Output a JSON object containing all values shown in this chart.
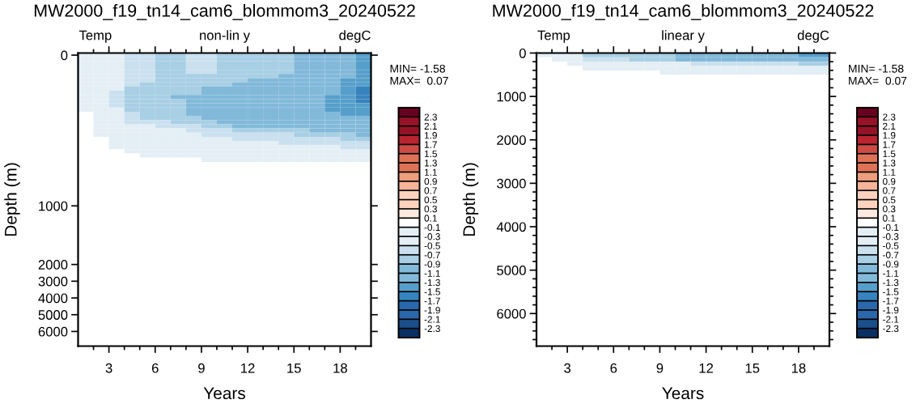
{
  "chart_data": [
    {
      "type": "heatmap",
      "title": "MW2000_f19_tn14_cam6_blommom3_20240522",
      "subtitle": "non-lin y",
      "xlabel": "Years",
      "ylabel": "Depth (m)",
      "annotations": [
        "Temp",
        "degC",
        "MIN= -1.58",
        "MAX=  0.07"
      ],
      "x": [
        1.5,
        2.5,
        3.5,
        4.5,
        5.5,
        6.5,
        7.5,
        8.5,
        9.5,
        10.5,
        11.5,
        12.5,
        13.5,
        14.5,
        15.5,
        16.5,
        17.5,
        18.5,
        19.5
      ],
      "y_categories": [
        "0",
        null,
        null,
        null,
        null,
        null,
        null,
        null,
        null,
        null,
        null,
        null,
        null,
        null,
        null,
        null,
        null,
        null,
        null,
        null,
        null,
        null,
        null,
        null,
        null,
        null,
        null,
        null,
        null,
        null,
        null,
        null,
        null,
        null,
        null,
        null,
        "1000",
        null,
        null,
        null,
        null,
        null,
        null,
        null,
        null,
        null,
        null,
        null,
        null,
        null,
        "2000",
        null,
        null,
        null,
        "3000",
        null,
        null,
        null,
        "4000",
        null,
        null,
        null,
        "5000",
        null,
        null,
        null,
        "6000",
        null,
        null,
        null
      ],
      "xlim": [
        1,
        20
      ],
      "xticks": [
        {
          "value": 2,
          "label": null
        },
        3,
        {
          "value": 4,
          "label": null
        },
        {
          "value": 5,
          "label": null
        },
        6,
        {
          "value": 7,
          "label": null
        },
        {
          "value": 8,
          "label": null
        },
        9,
        {
          "value": 10,
          "label": null
        },
        {
          "value": 11,
          "label": null
        },
        12,
        {
          "value": 13,
          "label": null
        },
        {
          "value": 14,
          "label": null
        },
        15,
        {
          "value": 16,
          "label": null
        },
        {
          "value": 17,
          "label": null
        },
        18,
        {
          "value": 19,
          "label": null
        }
      ],
      "clim": [
        -2.5,
        2.5
      ],
      "cticks": [
        -2.3,
        -2.1,
        -1.9,
        -1.7,
        -1.5,
        -1.3,
        -1.1,
        -0.9,
        -0.7,
        -0.5,
        -0.3,
        -0.1,
        0.1,
        0.3,
        0.5,
        0.7,
        0.9,
        1.1,
        1.3,
        1.5,
        1.7,
        1.9,
        2.1,
        2.3
      ],
      "colors": [
        "#0a3064",
        "#1b4f8a",
        "#2a68ab",
        "#2a68ab",
        "#3783bd",
        "#569fcb",
        "#82b9d9",
        "#82b9d9",
        "#a8cfe4",
        "#cae0ee",
        "#e4eef5",
        "#e4eef5",
        "#ffffff",
        "#fde9df",
        "#fbd2bd",
        "#fbd2bd",
        "#f6b498",
        "#ee9e7c",
        "#de7257",
        "#de7257",
        "#cd4b43",
        "#b92430",
        "#961227",
        "#961227",
        "#67001f"
      ],
      "cells": [
        [
          -0.2,
          -0.4,
          -0.4,
          -0.6,
          -0.6,
          -0.8,
          -0.8,
          -0.6,
          -0.6,
          -0.8,
          -0.8,
          -0.8,
          -0.8,
          -0.8,
          -1.0,
          -1.0,
          -1.0,
          -1.0,
          -1.4
        ],
        [
          -0.2,
          -0.4,
          -0.4,
          -0.6,
          -0.6,
          -0.8,
          -0.8,
          -0.6,
          -0.6,
          -0.8,
          -0.8,
          -0.8,
          -0.8,
          -0.8,
          -1.0,
          -1.0,
          -1.0,
          -1.0,
          -1.4
        ],
        [
          -0.2,
          -0.4,
          -0.4,
          -0.6,
          -0.6,
          -0.8,
          -0.8,
          -0.6,
          -0.6,
          -0.8,
          -0.8,
          -0.8,
          -0.8,
          -0.8,
          -1.0,
          -1.0,
          -1.0,
          -1.0,
          -1.4
        ],
        [
          -0.2,
          -0.4,
          -0.4,
          -0.6,
          -0.6,
          -0.8,
          -0.8,
          -0.6,
          -0.6,
          -0.8,
          -0.8,
          -0.8,
          -0.8,
          -0.8,
          -1.0,
          -1.0,
          -1.0,
          -1.0,
          -1.4
        ],
        [
          -0.2,
          -0.4,
          -0.4,
          -0.6,
          -0.6,
          -0.8,
          -0.8,
          -0.6,
          -0.6,
          -0.8,
          -0.8,
          -0.8,
          -0.8,
          -0.8,
          -1.0,
          -1.0,
          -1.0,
          -1.0,
          -1.4
        ],
        [
          -0.2,
          -0.4,
          -0.4,
          -0.6,
          -0.6,
          -0.8,
          -0.8,
          -0.8,
          -0.8,
          -0.8,
          -0.8,
          -0.8,
          -0.8,
          -1.0,
          -1.0,
          -1.0,
          -1.0,
          -1.0,
          -1.4
        ],
        [
          -0.2,
          -0.4,
          -0.4,
          -0.6,
          -0.6,
          -0.8,
          -0.8,
          -0.8,
          -0.8,
          -0.8,
          -0.8,
          -1.0,
          -1.0,
          -1.0,
          -1.0,
          -1.0,
          -1.0,
          -1.4,
          -1.4
        ],
        [
          -0.2,
          -0.4,
          -0.4,
          -0.6,
          -0.8,
          -0.8,
          -0.8,
          -0.8,
          -0.8,
          -0.8,
          -1.0,
          -1.0,
          -1.0,
          -1.0,
          -1.2,
          -1.2,
          -1.0,
          -1.4,
          -1.4
        ],
        [
          -0.2,
          -0.4,
          -0.4,
          -0.8,
          -0.8,
          -0.8,
          -0.8,
          -0.8,
          -1.0,
          -1.0,
          -1.0,
          -1.0,
          -1.2,
          -1.2,
          -1.2,
          -1.2,
          -1.2,
          -1.4,
          -1.55
        ],
        [
          -0.2,
          -0.4,
          -0.6,
          -0.8,
          -0.8,
          -0.8,
          -0.8,
          -0.8,
          -1.0,
          -1.0,
          -1.0,
          -1.2,
          -1.2,
          -1.2,
          -1.2,
          -1.2,
          -1.2,
          -1.4,
          -1.58
        ],
        [
          -0.2,
          -0.4,
          -0.6,
          -0.8,
          -0.8,
          -0.8,
          -1.0,
          -1.0,
          -1.0,
          -1.0,
          -1.2,
          -1.2,
          -1.2,
          -1.2,
          -1.2,
          -1.2,
          -1.4,
          -1.4,
          -1.55
        ],
        [
          -0.2,
          -0.4,
          -0.6,
          -0.8,
          -0.8,
          -0.8,
          -0.8,
          -1.0,
          -1.0,
          -1.0,
          -1.2,
          -1.2,
          -1.2,
          -1.2,
          -1.2,
          -1.2,
          -1.4,
          -1.4,
          -1.55
        ],
        [
          -0.2,
          -0.4,
          -0.6,
          -0.8,
          -0.8,
          -0.8,
          -0.8,
          -1.0,
          -1.0,
          -1.0,
          -1.2,
          -1.2,
          -1.2,
          -1.2,
          -1.2,
          -1.2,
          -1.4,
          -1.4,
          -1.4
        ],
        [
          -0.2,
          -0.4,
          -0.4,
          -0.8,
          -0.8,
          -0.8,
          -0.8,
          -1.0,
          -1.0,
          -1.0,
          -1.2,
          -1.2,
          -1.2,
          -1.2,
          -1.2,
          -1.2,
          -1.4,
          -1.4,
          -1.4
        ],
        [
          0,
          -0.4,
          -0.4,
          -0.6,
          -0.8,
          -0.8,
          -0.8,
          -1.0,
          -1.0,
          -1.0,
          -1.2,
          -1.2,
          -1.2,
          -1.2,
          -1.2,
          -1.2,
          -1.0,
          -1.4,
          -1.4
        ],
        [
          0,
          -0.4,
          -0.4,
          -0.6,
          -0.8,
          -0.8,
          -0.8,
          -0.8,
          -1.0,
          -1.0,
          -1.0,
          -1.2,
          -1.2,
          -1.2,
          -1.2,
          -1.2,
          -1.0,
          -1.0,
          -1.0
        ],
        [
          0,
          -0.4,
          -0.4,
          -0.6,
          -0.6,
          -0.6,
          -0.8,
          -0.8,
          -0.8,
          -1.0,
          -1.0,
          -1.0,
          -1.0,
          -1.2,
          -1.2,
          -1.2,
          -1.0,
          -1.0,
          -1.0
        ],
        [
          0,
          -0.2,
          -0.4,
          -0.4,
          -0.4,
          -0.6,
          -0.6,
          -0.6,
          -0.8,
          -0.8,
          -1.0,
          -1.0,
          -1.0,
          -1.0,
          -1.0,
          -1.2,
          -1.0,
          -1.0,
          -1.0
        ],
        [
          0,
          -0.2,
          -0.4,
          -0.4,
          -0.4,
          -0.4,
          -0.4,
          -0.6,
          -0.6,
          -0.6,
          -0.8,
          -0.8,
          -0.8,
          -0.8,
          -0.8,
          -1.0,
          -1.0,
          -1.0,
          -1.0
        ],
        [
          0,
          -0.2,
          -0.4,
          -0.4,
          -0.4,
          -0.4,
          -0.4,
          -0.4,
          -0.6,
          -0.6,
          -0.6,
          -0.6,
          -0.6,
          -0.6,
          -0.8,
          -0.8,
          -0.8,
          -0.8,
          -1.0
        ],
        [
          0,
          0,
          -0.2,
          -0.4,
          -0.4,
          -0.4,
          -0.4,
          -0.4,
          -0.4,
          -0.4,
          -0.6,
          -0.6,
          -0.6,
          -0.6,
          -0.6,
          -0.6,
          -0.6,
          -0.8,
          -0.8
        ],
        [
          0,
          0,
          -0.2,
          -0.2,
          -0.2,
          -0.4,
          -0.4,
          -0.4,
          -0.4,
          -0.4,
          -0.4,
          -0.4,
          -0.4,
          -0.6,
          -0.6,
          -0.6,
          -0.6,
          -0.6,
          -0.6
        ],
        [
          0,
          0,
          -0.2,
          -0.2,
          -0.2,
          -0.2,
          -0.2,
          -0.4,
          -0.4,
          -0.4,
          -0.4,
          -0.4,
          -0.4,
          -0.4,
          -0.4,
          -0.4,
          -0.4,
          -0.6,
          -0.6
        ],
        [
          0,
          0,
          0,
          -0.2,
          -0.2,
          -0.2,
          -0.2,
          -0.2,
          -0.2,
          -0.2,
          -0.4,
          -0.4,
          -0.4,
          -0.4,
          -0.4,
          -0.4,
          -0.4,
          -0.4,
          -0.4
        ],
        [
          0,
          0,
          0,
          0,
          -0.2,
          -0.2,
          -0.2,
          -0.2,
          -0.2,
          -0.2,
          -0.2,
          -0.2,
          -0.2,
          -0.2,
          -0.2,
          -0.2,
          -0.4,
          -0.4,
          -0.4
        ],
        [
          0,
          0,
          0,
          0,
          0,
          0,
          0,
          0,
          -0.2,
          -0.2,
          -0.2,
          -0.2,
          -0.2,
          -0.2,
          -0.2,
          -0.2,
          -0.2,
          -0.2,
          -0.2
        ],
        [
          0,
          0,
          0,
          0,
          0,
          0,
          0,
          0,
          0,
          0,
          0,
          0,
          0,
          0,
          0,
          0,
          0,
          0,
          0
        ],
        [
          0,
          0,
          0,
          0,
          0,
          0,
          0,
          0,
          0,
          0,
          0,
          0,
          0,
          0,
          0,
          0,
          0,
          0,
          0
        ],
        [
          0,
          0,
          0,
          0,
          0,
          0,
          0,
          0,
          0,
          0,
          0,
          0,
          0,
          0,
          0,
          0,
          0,
          0,
          0
        ],
        [
          0,
          0,
          0,
          0,
          0,
          0,
          0,
          0,
          0,
          0,
          0,
          0,
          0,
          0,
          0,
          0,
          0,
          0,
          0
        ],
        [
          0,
          0,
          0,
          0,
          0,
          0,
          0,
          0,
          0,
          0,
          0,
          0,
          0,
          0,
          0,
          0,
          0,
          0,
          0
        ],
        [
          0,
          0,
          0,
          0,
          0,
          0,
          0,
          0,
          0,
          0,
          0,
          0,
          0,
          0,
          0,
          0,
          0,
          0,
          0
        ],
        [
          0,
          0,
          0,
          0,
          0,
          0,
          0,
          0,
          0,
          0,
          0,
          0,
          0,
          0,
          0,
          0,
          0,
          0,
          0
        ],
        [
          0,
          0,
          0,
          0,
          0,
          0,
          0,
          0,
          0,
          0,
          0,
          0,
          0,
          0,
          0,
          0,
          0,
          0,
          0
        ],
        [
          0,
          0,
          0,
          0,
          0,
          0,
          0,
          0,
          0,
          0,
          0,
          0,
          0,
          0,
          0,
          0,
          0,
          0,
          0
        ],
        [
          0,
          0,
          0,
          0,
          0,
          0,
          0,
          0,
          0,
          0,
          0,
          0,
          0,
          0,
          0,
          0,
          0,
          0,
          0
        ],
        [
          0,
          0,
          0,
          0,
          0,
          0,
          0,
          0,
          0,
          0,
          0,
          0,
          0,
          0,
          0,
          0,
          0,
          0,
          0
        ],
        [
          0,
          0,
          0,
          0,
          0,
          0,
          0,
          0,
          0,
          0,
          0,
          0,
          0,
          0,
          0,
          0,
          0,
          0,
          0
        ],
        [
          0,
          0,
          0,
          0,
          0,
          0,
          0,
          0,
          0,
          0,
          0,
          0,
          0,
          0,
          0,
          0,
          0,
          0,
          0
        ],
        [
          0,
          0,
          0,
          0,
          0,
          0,
          0,
          0,
          0,
          0,
          0,
          0,
          0,
          0,
          0,
          0,
          0,
          0,
          0
        ],
        [
          0,
          0,
          0,
          0,
          0,
          0,
          0,
          0,
          0,
          0,
          0,
          0,
          0,
          0,
          0,
          0,
          0,
          0,
          0
        ],
        [
          0,
          0,
          0,
          0,
          0,
          0,
          0,
          0,
          0,
          0,
          0,
          0,
          0,
          0,
          0,
          0,
          0,
          0,
          0
        ],
        [
          0,
          0,
          0,
          0,
          0,
          0,
          0,
          0,
          0,
          0,
          0,
          0,
          0,
          0,
          0,
          0,
          0,
          0,
          0
        ],
        [
          0,
          0,
          0,
          0,
          0,
          0,
          0,
          0,
          0,
          0,
          0,
          0,
          0,
          0,
          0,
          0,
          0,
          0,
          0
        ],
        [
          0,
          0,
          0,
          0,
          0,
          0,
          0,
          0,
          0,
          0,
          0,
          0,
          0,
          0,
          0,
          0,
          0,
          0,
          0
        ],
        [
          0,
          0,
          0,
          0,
          0,
          0,
          0,
          0,
          0,
          0,
          0,
          0,
          0,
          0,
          0,
          0,
          0,
          0,
          0
        ],
        [
          0,
          0,
          0,
          0,
          0,
          0,
          0,
          0,
          0,
          0,
          0,
          0,
          0,
          0,
          0,
          0,
          0,
          0,
          0
        ],
        [
          0,
          0,
          0,
          0,
          0,
          0,
          0,
          0,
          0,
          0,
          0,
          0,
          0,
          0,
          0,
          0,
          0,
          0,
          0
        ],
        [
          0,
          0,
          0,
          0,
          0,
          0,
          0,
          0,
          0,
          0,
          0,
          0,
          0,
          0,
          0,
          0,
          0,
          0,
          0
        ],
        [
          0,
          0,
          0,
          0,
          0,
          0,
          0,
          0,
          0,
          0,
          0,
          0,
          0,
          0,
          0,
          0,
          0,
          0,
          0
        ],
        [
          0,
          0,
          0,
          0,
          0,
          0,
          0,
          0,
          0,
          0,
          0,
          0,
          0,
          0,
          0,
          0,
          0,
          0,
          0
        ],
        [
          0,
          0,
          0,
          0,
          0,
          0,
          0,
          0,
          0,
          0,
          0,
          0,
          0,
          0,
          0,
          0,
          0,
          0,
          0
        ],
        [
          0,
          0,
          0,
          0,
          0,
          0,
          0,
          0,
          0,
          0,
          0,
          0,
          0,
          0,
          0,
          0,
          0,
          0,
          0
        ],
        [
          0,
          0,
          0,
          0,
          0,
          0,
          0,
          0,
          0,
          0,
          0,
          0,
          0,
          0,
          0,
          0,
          0,
          0,
          0
        ],
        [
          0,
          0,
          0,
          0,
          0,
          0,
          0,
          0,
          0,
          0,
          0,
          0,
          0,
          0,
          0,
          0,
          0,
          0,
          0
        ],
        [
          0,
          0,
          0,
          0,
          0,
          0,
          0,
          0,
          0,
          0,
          0,
          0,
          0,
          0,
          0,
          0,
          0,
          0,
          0
        ],
        [
          0,
          0,
          0,
          0,
          0,
          0,
          0,
          0,
          0,
          0,
          0,
          0,
          0,
          0,
          0,
          0,
          0,
          0,
          0
        ],
        [
          0,
          0,
          0,
          0,
          0,
          0,
          0,
          0,
          0,
          0,
          0,
          0,
          0,
          0,
          0,
          0,
          0,
          0,
          0
        ],
        [
          0,
          0,
          0,
          0,
          0,
          0,
          0,
          0,
          0,
          0,
          0,
          0,
          0,
          0,
          0,
          0,
          0,
          0,
          0
        ],
        [
          0,
          0,
          0,
          0,
          0,
          0,
          0,
          0,
          0,
          0,
          0,
          0,
          0,
          0,
          0,
          0,
          0,
          0,
          0
        ],
        [
          0,
          0,
          0,
          0,
          0,
          0,
          0,
          0,
          0,
          0,
          0,
          0,
          0,
          0,
          0,
          0,
          0,
          0,
          0
        ],
        [
          0,
          0,
          0,
          0,
          0,
          0,
          0,
          0,
          0,
          0,
          0,
          0,
          0,
          0,
          0,
          0,
          0,
          0,
          0
        ],
        [
          0,
          0,
          0,
          0,
          0,
          0,
          0,
          0,
          0,
          0,
          0,
          0,
          0,
          0,
          0,
          0,
          0,
          0,
          0
        ],
        [
          0,
          0,
          0,
          0,
          0,
          0,
          0,
          0,
          0,
          0,
          0,
          0,
          0,
          0,
          0,
          0,
          0,
          0,
          0
        ],
        [
          0,
          0,
          0,
          0,
          0,
          0,
          0,
          0,
          0,
          0,
          0,
          0,
          0,
          0,
          0,
          0,
          0,
          0,
          0
        ],
        [
          0,
          0,
          0,
          0,
          0,
          0,
          0,
          0,
          0,
          0,
          0,
          0,
          0,
          0,
          0,
          0,
          0,
          0,
          0
        ],
        [
          0,
          0,
          0,
          0,
          0,
          0,
          0,
          0,
          0,
          0,
          0,
          0,
          0,
          0,
          0,
          0,
          0,
          0,
          0
        ],
        [
          0,
          0,
          0,
          0,
          0,
          0,
          0,
          0,
          0,
          0,
          0,
          0,
          0,
          0,
          0,
          0,
          0,
          0,
          0
        ],
        [
          0,
          0,
          0,
          0,
          0,
          0,
          0,
          0,
          0,
          0,
          0,
          0,
          0,
          0,
          0,
          0,
          0,
          0,
          0
        ],
        [
          0,
          0,
          0,
          0,
          0,
          0,
          0,
          0,
          0,
          0,
          0,
          0,
          0,
          0,
          0,
          0,
          0,
          0,
          0
        ]
      ]
    },
    {
      "type": "heatmap",
      "title": "MW2000_f19_tn14_cam6_blommom3_20240522",
      "subtitle": "linear y",
      "xlabel": "Years",
      "ylabel": "Depth (m)",
      "annotations": [
        "Temp",
        "degC",
        "MIN= -1.58",
        "MAX=  0.07"
      ],
      "x": [
        1.5,
        2.5,
        3.5,
        4.5,
        5.5,
        6.5,
        7.5,
        8.5,
        9.5,
        10.5,
        11.5,
        12.5,
        13.5,
        14.5,
        15.5,
        16.5,
        17.5,
        18.5,
        19.5
      ],
      "y": [
        50,
        150,
        250,
        350,
        450
      ],
      "xlim": [
        1,
        20
      ],
      "xticks": [
        {
          "value": 2,
          "label": null
        },
        3,
        {
          "value": 4,
          "label": null
        },
        {
          "value": 5,
          "label": null
        },
        6,
        {
          "value": 7,
          "label": null
        },
        {
          "value": 8,
          "label": null
        },
        9,
        {
          "value": 10,
          "label": null
        },
        {
          "value": 11,
          "label": null
        },
        12,
        {
          "value": 13,
          "label": null
        },
        {
          "value": 14,
          "label": null
        },
        15,
        {
          "value": 16,
          "label": null
        },
        {
          "value": 17,
          "label": null
        },
        18,
        {
          "value": 19,
          "label": null
        }
      ],
      "ylim": [
        6750,
        0
      ],
      "yticks": [
        0,
        {
          "value": 200,
          "label": null
        },
        {
          "value": 400,
          "label": null
        },
        {
          "value": 600,
          "label": null
        },
        {
          "value": 800,
          "label": null
        },
        1000,
        {
          "value": 1200,
          "label": null
        },
        {
          "value": 1400,
          "label": null
        },
        {
          "value": 1600,
          "label": null
        },
        {
          "value": 1800,
          "label": null
        },
        2000,
        {
          "value": 2200,
          "label": null
        },
        {
          "value": 2400,
          "label": null
        },
        {
          "value": 2600,
          "label": null
        },
        {
          "value": 2800,
          "label": null
        },
        3000,
        {
          "value": 3200,
          "label": null
        },
        {
          "value": 3400,
          "label": null
        },
        {
          "value": 3600,
          "label": null
        },
        {
          "value": 3800,
          "label": null
        },
        4000,
        {
          "value": 4200,
          "label": null
        },
        {
          "value": 4400,
          "label": null
        },
        {
          "value": 4600,
          "label": null
        },
        {
          "value": 4800,
          "label": null
        },
        5000,
        {
          "value": 5200,
          "label": null
        },
        {
          "value": 5400,
          "label": null
        },
        {
          "value": 5600,
          "label": null
        },
        {
          "value": 5800,
          "label": null
        },
        6000,
        {
          "value": 6200,
          "label": null
        },
        {
          "value": 6400,
          "label": null
        },
        {
          "value": 6600,
          "label": null
        }
      ],
      "clim": [
        -2.5,
        2.5
      ],
      "cticks": [
        -2.3,
        -2.1,
        -1.9,
        -1.7,
        -1.5,
        -1.3,
        -1.1,
        -0.9,
        -0.7,
        -0.5,
        -0.3,
        -0.1,
        0.1,
        0.3,
        0.5,
        0.7,
        0.9,
        1.1,
        1.3,
        1.5,
        1.7,
        1.9,
        2.1,
        2.3
      ],
      "colors": [
        "#0a3064",
        "#1b4f8a",
        "#2a68ab",
        "#2a68ab",
        "#3783bd",
        "#569fcb",
        "#82b9d9",
        "#82b9d9",
        "#a8cfe4",
        "#cae0ee",
        "#e4eef5",
        "#e4eef5",
        "#ffffff",
        "#fde9df",
        "#fbd2bd",
        "#fbd2bd",
        "#f6b498",
        "#ee9e7c",
        "#de7257",
        "#de7257",
        "#cd4b43",
        "#b92430",
        "#961227",
        "#961227",
        "#67001f"
      ],
      "cells": [
        [
          -0.2,
          -0.4,
          -0.4,
          -0.8,
          -0.8,
          -0.8,
          -0.8,
          -0.8,
          -0.8,
          -1.0,
          -1.0,
          -1.0,
          -1.0,
          -1.0,
          -1.2,
          -1.2,
          -1.2,
          -1.4,
          -1.4
        ],
        [
          0,
          -0.4,
          -0.4,
          -0.6,
          -0.6,
          -0.6,
          -0.8,
          -0.8,
          -0.8,
          -1.0,
          -1.0,
          -1.0,
          -1.0,
          -1.2,
          -1.2,
          -1.2,
          -1.0,
          -1.2,
          -1.2
        ],
        [
          0,
          0,
          -0.2,
          -0.4,
          -0.4,
          -0.4,
          -0.4,
          -0.4,
          -0.4,
          -0.4,
          -0.6,
          -0.6,
          -0.6,
          -0.6,
          -0.6,
          -0.6,
          -0.6,
          -0.8,
          -0.8
        ],
        [
          0,
          0,
          0,
          -0.2,
          -0.2,
          -0.2,
          -0.2,
          -0.2,
          -0.2,
          -0.2,
          -0.4,
          -0.4,
          -0.4,
          -0.4,
          -0.4,
          -0.4,
          -0.4,
          -0.4,
          -0.4
        ],
        [
          0,
          0,
          0,
          0,
          0,
          0,
          0,
          0,
          -0.2,
          -0.2,
          -0.2,
          -0.2,
          -0.2,
          -0.2,
          -0.2,
          -0.2,
          -0.2,
          -0.2,
          -0.2
        ]
      ]
    }
  ]
}
